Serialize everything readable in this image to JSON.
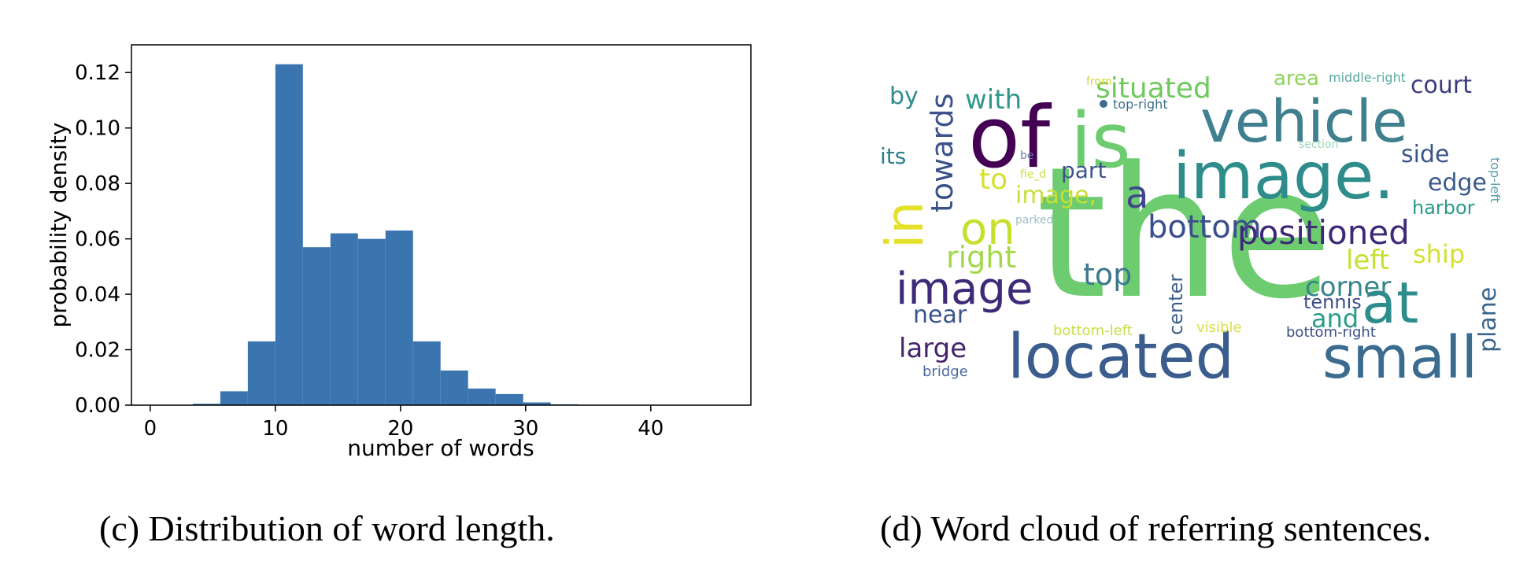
{
  "chart_data": [
    {
      "type": "bar",
      "subtype": "histogram",
      "xlabel": "number of words",
      "ylabel": "probability density",
      "xlim": [
        -1.5,
        48
      ],
      "ylim": [
        0,
        0.13
      ],
      "xticks": [
        "0",
        "10",
        "20",
        "30",
        "40"
      ],
      "yticks": [
        "0.00",
        "0.02",
        "0.04",
        "0.06",
        "0.08",
        "0.10",
        "0.12"
      ],
      "bin_edges": [
        3.4,
        5.6,
        7.8,
        10.0,
        12.2,
        14.4,
        16.6,
        18.8,
        21.0,
        23.2,
        25.4,
        27.6,
        29.8,
        32.0,
        34.2
      ],
      "values": [
        0.0005,
        0.005,
        0.023,
        0.123,
        0.057,
        0.062,
        0.06,
        0.063,
        0.023,
        0.0125,
        0.006,
        0.004,
        0.001,
        0.0003
      ],
      "color": "#3a75b0",
      "grid": false
    },
    {
      "type": "wordcloud",
      "colormap": "viridis",
      "words": [
        {
          "text": "the",
          "color": "#6ccc6f"
        },
        {
          "text": "of",
          "color": "#440154"
        },
        {
          "text": "is",
          "color": "#6ccc6f"
        },
        {
          "text": "vehicle",
          "color": "#3f7f8e"
        },
        {
          "text": "image.",
          "color": "#2e8c8b"
        },
        {
          "text": "located",
          "color": "#3b5d8d"
        },
        {
          "text": "small",
          "color": "#3b6b8e"
        },
        {
          "text": "at",
          "color": "#2c8d8c"
        },
        {
          "text": "in",
          "color": "#e5e12a"
        },
        {
          "text": "on",
          "color": "#c7df2c"
        },
        {
          "text": "image",
          "color": "#3e2a78"
        },
        {
          "text": "positioned",
          "color": "#3d2a77"
        },
        {
          "text": "bottom",
          "color": "#3b4e8b"
        },
        {
          "text": "a",
          "color": "#3f4789"
        },
        {
          "text": "towards",
          "color": "#3b528b"
        },
        {
          "text": "situated",
          "color": "#6fc95f"
        },
        {
          "text": "with",
          "color": "#2f988a"
        },
        {
          "text": "right",
          "color": "#a3d84a"
        },
        {
          "text": "top",
          "color": "#3c788e"
        },
        {
          "text": "corner",
          "color": "#38858d"
        },
        {
          "text": "large",
          "color": "#45236b"
        },
        {
          "text": "near",
          "color": "#3a538a"
        },
        {
          "text": "left",
          "color": "#c6e030"
        },
        {
          "text": "ship",
          "color": "#d4e032"
        },
        {
          "text": "and",
          "color": "#2a9c88"
        },
        {
          "text": "plane",
          "color": "#37648c"
        },
        {
          "text": "side",
          "color": "#3b5589"
        },
        {
          "text": "edge",
          "color": "#3b5a8b"
        },
        {
          "text": "court",
          "color": "#3d3c80"
        },
        {
          "text": "to",
          "color": "#d6e030"
        },
        {
          "text": "part",
          "color": "#3b5589"
        },
        {
          "text": "image,",
          "color": "#c8df37"
        },
        {
          "text": "its",
          "color": "#2c7f8e"
        },
        {
          "text": "by",
          "color": "#2f8d8b"
        },
        {
          "text": "area",
          "color": "#8fd35a"
        },
        {
          "text": "harbor",
          "color": "#2a9a89"
        },
        {
          "text": "tennis",
          "color": "#3c4e8a"
        },
        {
          "text": "center",
          "color": "#3b5f8c"
        },
        {
          "text": "visible",
          "color": "#d9e048"
        },
        {
          "text": "bottom-left",
          "color": "#c8df45"
        },
        {
          "text": "bottom-right",
          "color": "#3c4f8a"
        },
        {
          "text": "bridge",
          "color": "#4a6aa0"
        },
        {
          "text": "middle-right",
          "color": "#58a8a0"
        },
        {
          "text": "top-left",
          "color": "#5aa0a8"
        },
        {
          "text": "top-right",
          "color": "#3d6e8c"
        },
        {
          "text": "from",
          "color": "#d6d73a"
        },
        {
          "text": "section",
          "color": "#9ad8b8"
        },
        {
          "text": "be",
          "color": "#6a7fa8"
        },
        {
          "text": "fie_d",
          "color": "#c8df45"
        },
        {
          "text": "parked",
          "color": "#9bc0c8"
        }
      ]
    }
  ],
  "captions": {
    "left": "(c) Distribution of word length.",
    "right": "(d) Word cloud of referring sentences."
  }
}
